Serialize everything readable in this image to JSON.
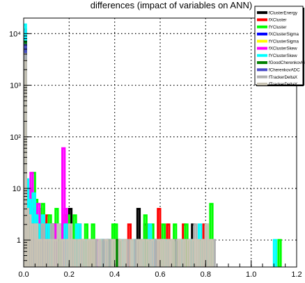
{
  "chart_data": {
    "type": "histogram",
    "title": "differences (impact of variables on ANN)",
    "xlabel": "",
    "ylabel": "",
    "x_range": [
      0.0,
      1.2
    ],
    "y_range": [
      0.3,
      20000
    ],
    "y_scale": "log",
    "grid": true,
    "legend_placement": "top-right",
    "x_ticks": [
      "0.0",
      "0.2",
      "0.4",
      "0.6",
      "0.8",
      "1.0",
      "1.2"
    ],
    "x_tick_values": [
      0.0,
      0.2,
      0.4,
      0.6,
      0.8,
      1.0,
      1.2
    ],
    "y_ticks": [
      "1",
      "10",
      "10²",
      "10³",
      "10⁴"
    ],
    "y_tick_values": [
      1,
      10,
      100,
      1000,
      10000
    ],
    "bin_width": 0.01,
    "series": [
      {
        "name": "fClusterEnergy",
        "color": "#000000",
        "bins": [
          [
            0.0,
            9000
          ],
          [
            0.01,
            6
          ],
          [
            0.02,
            2
          ],
          [
            0.03,
            3
          ],
          [
            0.05,
            2
          ],
          [
            0.07,
            1
          ],
          [
            0.09,
            2
          ],
          [
            0.12,
            2
          ],
          [
            0.15,
            1
          ],
          [
            0.18,
            2
          ],
          [
            0.2,
            4
          ],
          [
            0.23,
            1
          ],
          [
            0.28,
            1
          ],
          [
            0.34,
            1
          ],
          [
            0.5,
            4
          ],
          [
            0.53,
            2
          ],
          [
            0.58,
            1
          ],
          [
            0.66,
            1
          ],
          [
            0.74,
            2
          ]
        ]
      },
      {
        "name": "fXCluster",
        "color": "#ff0000",
        "bins": [
          [
            0.0,
            12000
          ],
          [
            0.01,
            7
          ],
          [
            0.02,
            3
          ],
          [
            0.04,
            2
          ],
          [
            0.06,
            2
          ],
          [
            0.08,
            1
          ],
          [
            0.1,
            3
          ],
          [
            0.13,
            1
          ],
          [
            0.16,
            1
          ],
          [
            0.18,
            3
          ],
          [
            0.21,
            1
          ],
          [
            0.24,
            2
          ],
          [
            0.26,
            1
          ],
          [
            0.3,
            1
          ],
          [
            0.4,
            1
          ],
          [
            0.46,
            2
          ],
          [
            0.54,
            2
          ],
          [
            0.59,
            4
          ],
          [
            0.63,
            2
          ],
          [
            0.68,
            1
          ],
          [
            0.7,
            2
          ],
          [
            0.72,
            1
          ],
          [
            0.79,
            2
          ]
        ]
      },
      {
        "name": "fYCluster",
        "color": "#00ff00",
        "bins": [
          [
            0.0,
            10000
          ],
          [
            0.01,
            8
          ],
          [
            0.02,
            5
          ],
          [
            0.03,
            10
          ],
          [
            0.04,
            20
          ],
          [
            0.05,
            6
          ],
          [
            0.07,
            4
          ],
          [
            0.08,
            5
          ],
          [
            0.11,
            3
          ],
          [
            0.12,
            2
          ],
          [
            0.14,
            4
          ],
          [
            0.16,
            2
          ],
          [
            0.19,
            3
          ],
          [
            0.22,
            3
          ],
          [
            0.23,
            2
          ],
          [
            0.27,
            2
          ],
          [
            0.3,
            2
          ],
          [
            0.37,
            1
          ],
          [
            0.39,
            2
          ],
          [
            0.4,
            2
          ],
          [
            0.41,
            1
          ],
          [
            0.53,
            3
          ],
          [
            0.56,
            2
          ],
          [
            0.61,
            2
          ],
          [
            0.66,
            2
          ],
          [
            0.71,
            2
          ],
          [
            0.77,
            1
          ],
          [
            0.82,
            5
          ],
          [
            1.12,
            1
          ]
        ]
      },
      {
        "name": "fXClusterSigma",
        "color": "#0000ff",
        "bins": [
          [
            0.0,
            8000
          ],
          [
            0.01,
            5
          ],
          [
            0.02,
            1
          ],
          [
            0.04,
            1
          ],
          [
            0.05,
            1
          ],
          [
            0.13,
            1
          ],
          [
            0.36,
            1
          ],
          [
            0.57,
            1
          ]
        ]
      },
      {
        "name": "fYClusterSigma",
        "color": "#ffff00",
        "bins": [
          [
            0.0,
            5000
          ],
          [
            0.02,
            3
          ],
          [
            0.03,
            2
          ],
          [
            0.06,
            1
          ],
          [
            0.28,
            1
          ]
        ]
      },
      {
        "name": "fXClusterSkew",
        "color": "#ff00ff",
        "bins": [
          [
            0.0,
            11000
          ],
          [
            0.01,
            9
          ],
          [
            0.02,
            4
          ],
          [
            0.03,
            20
          ],
          [
            0.04,
            4
          ],
          [
            0.06,
            5
          ],
          [
            0.08,
            1
          ],
          [
            0.09,
            2
          ],
          [
            0.12,
            2
          ],
          [
            0.13,
            2
          ],
          [
            0.17,
            60
          ],
          [
            0.18,
            4
          ],
          [
            0.2,
            1
          ],
          [
            0.24,
            1
          ],
          [
            0.32,
            1
          ],
          [
            0.56,
            1
          ]
        ]
      },
      {
        "name": "fYClusterSkew",
        "color": "#00ffff",
        "bins": [
          [
            0.0,
            15000
          ],
          [
            0.01,
            15
          ],
          [
            0.02,
            6
          ],
          [
            0.03,
            5
          ],
          [
            0.04,
            8
          ],
          [
            0.05,
            3
          ],
          [
            0.06,
            2
          ],
          [
            0.08,
            3
          ],
          [
            0.1,
            2
          ],
          [
            0.11,
            2
          ],
          [
            0.12,
            1
          ],
          [
            0.15,
            2
          ],
          [
            0.16,
            1
          ],
          [
            0.18,
            2
          ],
          [
            0.19,
            1
          ],
          [
            0.2,
            1
          ],
          [
            0.22,
            1
          ],
          [
            0.23,
            2
          ],
          [
            0.24,
            2
          ],
          [
            0.25,
            1
          ],
          [
            0.27,
            1
          ],
          [
            0.34,
            1
          ],
          [
            0.43,
            1
          ],
          [
            0.48,
            1
          ],
          [
            0.52,
            1
          ],
          [
            0.55,
            2
          ],
          [
            0.57,
            1
          ],
          [
            0.62,
            1
          ],
          [
            0.69,
            1
          ],
          [
            0.73,
            1
          ],
          [
            0.77,
            2
          ],
          [
            0.8,
            2
          ],
          [
            1.1,
            1
          ]
        ]
      },
      {
        "name": "fGoodCherenkovHit",
        "color": "#008000",
        "bins": [
          [
            0.0,
            7000
          ],
          [
            0.03,
            2
          ],
          [
            0.15,
            1
          ],
          [
            0.41,
            1
          ]
        ]
      },
      {
        "name": "fCherenkovADC",
        "color": "#4b4bc8",
        "bins": [
          [
            0.0,
            6000
          ],
          [
            0.01,
            4
          ],
          [
            0.02,
            1
          ],
          [
            0.03,
            1
          ],
          [
            0.04,
            1
          ],
          [
            0.05,
            1
          ],
          [
            0.07,
            1
          ],
          [
            0.09,
            1
          ]
        ]
      },
      {
        "name": "fTrackerDeltaX",
        "color": "#b0b0b0",
        "bins": [
          [
            0.0,
            4000
          ],
          [
            0.01,
            3
          ],
          [
            0.02,
            2
          ],
          [
            0.04,
            2
          ],
          [
            0.05,
            1
          ],
          [
            0.06,
            1
          ],
          [
            0.08,
            2
          ],
          [
            0.1,
            1
          ],
          [
            0.12,
            2
          ],
          [
            0.14,
            1
          ],
          [
            0.16,
            1
          ],
          [
            0.21,
            1
          ],
          [
            0.25,
            1
          ],
          [
            0.29,
            1
          ],
          [
            0.31,
            1
          ],
          [
            0.35,
            1
          ],
          [
            0.38,
            1
          ],
          [
            0.45,
            1
          ],
          [
            0.49,
            1
          ],
          [
            0.51,
            1
          ],
          [
            0.58,
            1
          ],
          [
            0.6,
            1
          ],
          [
            0.64,
            1
          ],
          [
            0.67,
            1
          ],
          [
            0.75,
            2
          ],
          [
            0.78,
            1
          ],
          [
            0.81,
            1
          ],
          [
            0.83,
            1
          ]
        ]
      },
      {
        "name": "fTrackerDeltaY",
        "color": "#c8c3b4",
        "bins": [
          [
            0.0,
            3000
          ],
          [
            0.01,
            4
          ],
          [
            0.02,
            3
          ],
          [
            0.03,
            2
          ],
          [
            0.05,
            2
          ],
          [
            0.06,
            1
          ],
          [
            0.07,
            1
          ],
          [
            0.09,
            1
          ],
          [
            0.11,
            1
          ],
          [
            0.13,
            1
          ],
          [
            0.15,
            2
          ],
          [
            0.17,
            1
          ],
          [
            0.19,
            1
          ],
          [
            0.2,
            2
          ],
          [
            0.22,
            1
          ],
          [
            0.24,
            1
          ],
          [
            0.26,
            1
          ],
          [
            0.28,
            1
          ],
          [
            0.3,
            1
          ],
          [
            0.33,
            1
          ],
          [
            0.36,
            1
          ],
          [
            0.39,
            1
          ],
          [
            0.42,
            1
          ],
          [
            0.44,
            1
          ],
          [
            0.47,
            1
          ],
          [
            0.5,
            1
          ],
          [
            0.52,
            1
          ],
          [
            0.54,
            1
          ],
          [
            0.56,
            1
          ],
          [
            0.59,
            1
          ],
          [
            0.61,
            1
          ],
          [
            0.63,
            1
          ],
          [
            0.65,
            1
          ],
          [
            0.68,
            1
          ],
          [
            0.7,
            1
          ],
          [
            0.72,
            1
          ],
          [
            0.74,
            1
          ],
          [
            0.76,
            1
          ],
          [
            0.78,
            1
          ],
          [
            0.8,
            2
          ],
          [
            0.82,
            1
          ]
        ]
      }
    ]
  }
}
